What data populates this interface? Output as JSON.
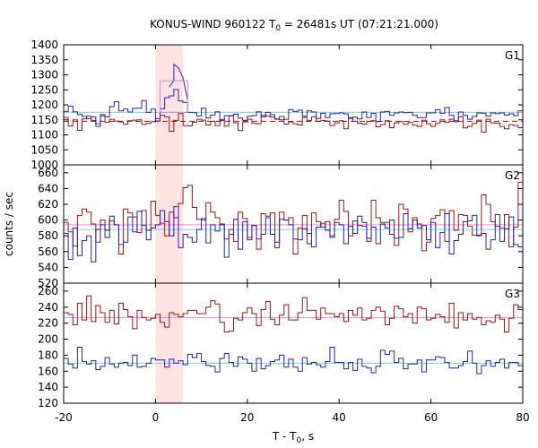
{
  "chart_data": {
    "type": "line",
    "title_main": "KONUS-WIND 960122 T",
    "title_sub": "0",
    "title_rest": " = 26481s UT (07:21:21.000)",
    "xlabel_main": "T - T",
    "xlabel_sub": "0",
    "xlabel_rest": ", s",
    "ylabel": "counts / sec",
    "xlim": [
      -20,
      80
    ],
    "xticks": [
      -20,
      0,
      20,
      40,
      60,
      80
    ],
    "highlight": {
      "x0": 0,
      "x1": 6,
      "color": "#ffe3e3"
    },
    "colors": {
      "red": "#a01414",
      "blue": "#2323b4",
      "cyan": "#7ccfe6",
      "pink": "#e58ad6",
      "box": "#c88ce0"
    },
    "panels": [
      {
        "label": "G1",
        "ylim": [
          1000,
          1400
        ],
        "yticks": [
          1000,
          1050,
          1100,
          1150,
          1200,
          1250,
          1300,
          1350,
          1400
        ],
        "bin_width": 1,
        "x_start": -20,
        "red": [
          1158,
          1130,
          1150,
          1115,
          1153,
          1162,
          1148,
          1137,
          1168,
          1142,
          1152,
          1146,
          1143,
          1136,
          1147,
          1149,
          1150,
          1135,
          1138,
          1144,
          1154,
          1165,
          1160,
          1112,
          1148,
          1171,
          1131,
          1130,
          1142,
          1152,
          1149,
          1133,
          1145,
          1131,
          1151,
          1129,
          1164,
          1140,
          1114,
          1143,
          1152,
          1138,
          1137,
          1165,
          1163,
          1159,
          1152,
          1161,
          1136,
          1143,
          1137,
          1133,
          1158,
          1148,
          1160,
          1145,
          1148,
          1146,
          1131,
          1140,
          1147,
          1120,
          1155,
          1145,
          1139,
          1136,
          1145,
          1147,
          1127,
          1134,
          1147,
          1124,
          1140,
          1144,
          1135,
          1141,
          1132,
          1128,
          1149,
          1137,
          1128,
          1138,
          1150,
          1142,
          1152,
          1144,
          1160,
          1123,
          1128,
          1138,
          1149,
          1109,
          1152,
          1140,
          1139,
          1128,
          1120,
          1134,
          1131,
          1124
        ],
        "blue": [
          1178,
          1196,
          1177,
          1168,
          1161,
          1154,
          1160,
          1128,
          1163,
          1160,
          1194,
          1210,
          1180,
          1186,
          1176,
          1188,
          1189,
          1214,
          1175,
          1186,
          1146,
          1187,
          1224,
          1230,
          1251,
          1213,
          1208,
          1175,
          1174,
          1163,
          1189,
          1156,
          1166,
          1177,
          1148,
          1164,
          1163,
          1169,
          1156,
          1148,
          1162,
          1164,
          1177,
          1160,
          1175,
          1167,
          1153,
          1150,
          1152,
          1184,
          1178,
          1182,
          1162,
          1180,
          1176,
          1155,
          1172,
          1158,
          1170,
          1171,
          1173,
          1170,
          1157,
          1159,
          1153,
          1176,
          1158,
          1172,
          1144,
          1176,
          1178,
          1165,
          1173,
          1176,
          1174,
          1175,
          1165,
          1158,
          1158,
          1173,
          1173,
          1184,
          1172,
          1191,
          1165,
          1147,
          1176,
          1165,
          1152,
          1161,
          1173,
          1172,
          1162,
          1173,
          1171,
          1173,
          1166,
          1170,
          1164,
          1180
        ],
        "red_mean": 1145,
        "blue_mean": 1175,
        "box": {
          "x0": 1,
          "x1": 7,
          "y0": 1175,
          "y1": 1280
        },
        "blue_spike": [
          {
            "x": 3,
            "y": 1260
          },
          {
            "x": 4,
            "y": 1280
          },
          {
            "x": 4,
            "y": 1335
          },
          {
            "x": 5,
            "y": 1323
          },
          {
            "x": 6,
            "y": 1290
          },
          {
            "x": 7,
            "y": 1215
          }
        ]
      },
      {
        "label": "G2",
        "ylim": [
          520,
          670
        ],
        "yticks": [
          520,
          540,
          560,
          580,
          600,
          620,
          640,
          660
        ],
        "bin_width": 1,
        "x_start": -20,
        "red": [
          597,
          585,
          567,
          606,
          614,
          610,
          595,
          572,
          600,
          587,
          599,
          594,
          557,
          614,
          609,
          604,
          584,
          612,
          587,
          624,
          606,
          596,
          580,
          610,
          603,
          621,
          641,
          644,
          616,
          601,
          600,
          622,
          610,
          603,
          595,
          576,
          588,
          573,
          610,
          602,
          578,
          593,
          563,
          608,
          605,
          609,
          565,
          610,
          600,
          603,
          557,
          590,
          606,
          570,
          609,
          598,
          591,
          598,
          580,
          601,
          625,
          611,
          580,
          599,
          593,
          592,
          573,
          625,
          603,
          597,
          597,
          582,
          568,
          620,
          614,
          585,
          603,
          595,
          561,
          572,
          602,
          606,
          613,
          573,
          612,
          587,
          607,
          606,
          592,
          581,
          580,
          632,
          620,
          598,
          592,
          590,
          607,
          566,
          591,
          648
        ],
        "blue": [
          583,
          550,
          590,
          555,
          574,
          580,
          547,
          588,
          594,
          578,
          605,
          594,
          569,
          572,
          604,
          585,
          611,
          593,
          575,
          590,
          594,
          612,
          598,
          580,
          617,
          565,
          582,
          578,
          572,
          588,
          602,
          571,
          594,
          586,
          594,
          553,
          582,
          601,
          563,
          598,
          575,
          593,
          576,
          582,
          603,
          582,
          572,
          601,
          600,
          594,
          576,
          575,
          589,
          583,
          566,
          591,
          596,
          587,
          578,
          597,
          594,
          570,
          592,
          583,
          605,
          597,
          577,
          591,
          570,
          595,
          590,
          600,
          577,
          578,
          608,
          589,
          600,
          590,
          593,
          575,
          597,
          565,
          584,
          608,
          557,
          574,
          582,
          598,
          599,
          606,
          581,
          583,
          563,
          575,
          607,
          573,
          589,
          604,
          569,
          566
        ],
        "red_mean": 594,
        "blue_mean": 588
      },
      {
        "label": "G3",
        "ylim": [
          120,
          270
        ],
        "yticks": [
          120,
          140,
          160,
          180,
          200,
          220,
          240,
          260
        ],
        "bin_width": 1,
        "x_start": -20,
        "red": [
          233,
          231,
          218,
          245,
          224,
          254,
          222,
          242,
          233,
          221,
          236,
          219,
          245,
          237,
          228,
          213,
          236,
          227,
          224,
          226,
          231,
          221,
          215,
          233,
          231,
          228,
          232,
          236,
          236,
          232,
          232,
          240,
          248,
          244,
          221,
          209,
          210,
          226,
          224,
          233,
          239,
          232,
          217,
          237,
          247,
          225,
          218,
          230,
          243,
          224,
          224,
          233,
          252,
          236,
          236,
          225,
          239,
          232,
          232,
          228,
          232,
          222,
          236,
          230,
          239,
          224,
          226,
          236,
          240,
          235,
          218,
          226,
          241,
          238,
          228,
          232,
          220,
          240,
          238,
          224,
          226,
          231,
          228,
          221,
          245,
          214,
          233,
          224,
          232,
          225,
          227,
          218,
          223,
          221,
          230,
          225,
          209,
          226,
          243,
          237
        ],
        "blue": [
          176,
          169,
          164,
          190,
          172,
          169,
          173,
          162,
          166,
          177,
          169,
          165,
          170,
          171,
          167,
          180,
          165,
          166,
          170,
          176,
          174,
          174,
          165,
          175,
          170,
          173,
          168,
          181,
          177,
          182,
          172,
          167,
          166,
          159,
          176,
          182,
          171,
          166,
          178,
          175,
          170,
          160,
          176,
          163,
          167,
          172,
          174,
          180,
          165,
          175,
          165,
          160,
          177,
          169,
          171,
          168,
          165,
          172,
          190,
          171,
          171,
          163,
          171,
          161,
          175,
          166,
          164,
          158,
          166,
          186,
          181,
          185,
          171,
          176,
          163,
          169,
          169,
          174,
          159,
          174,
          174,
          178,
          177,
          171,
          164,
          164,
          167,
          172,
          185,
          170,
          157,
          167,
          173,
          166,
          171,
          175,
          164,
          171,
          171,
          167
        ],
        "red_mean": 227,
        "blue_mean": 170
      }
    ]
  }
}
